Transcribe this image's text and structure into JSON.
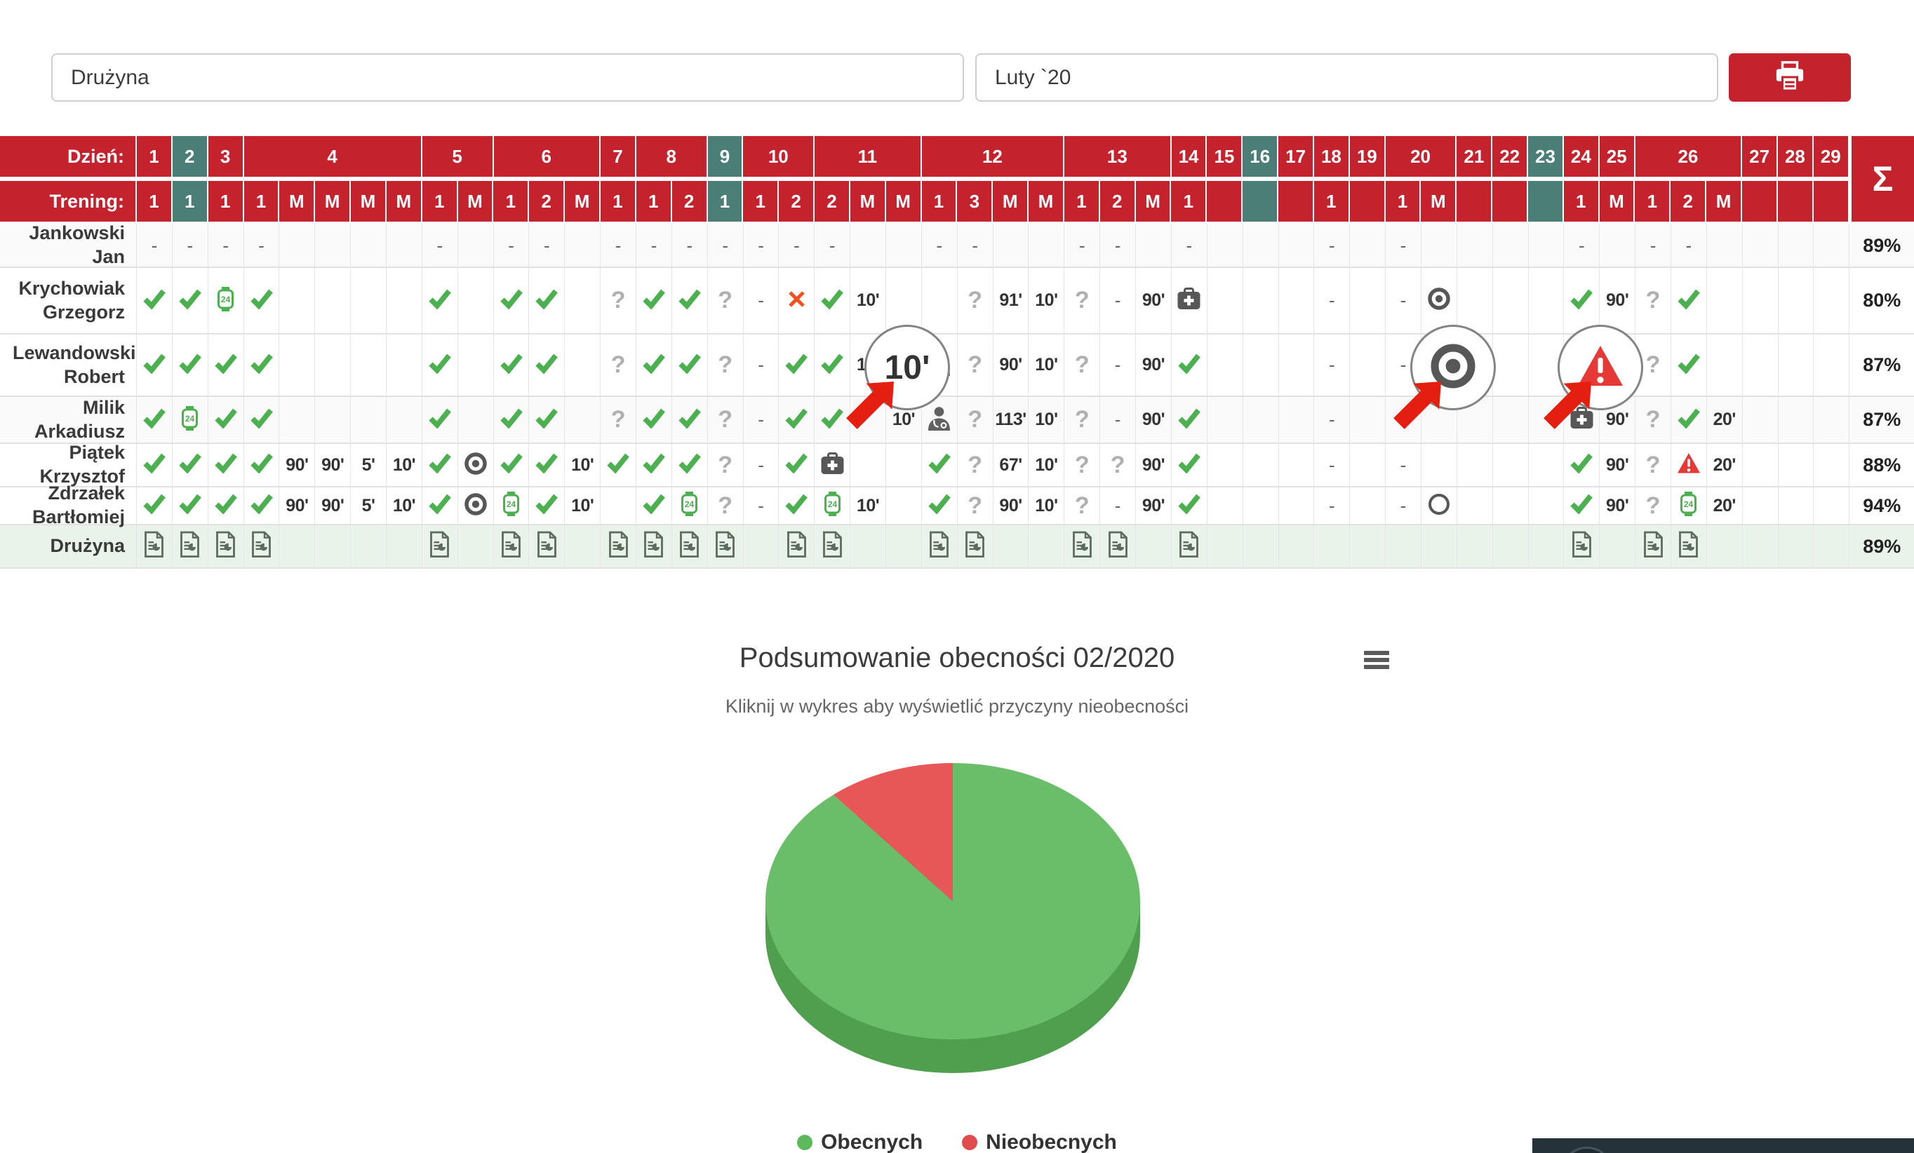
{
  "topbar": {
    "team_value": "Drużyna",
    "month_value": "Luty `20",
    "print_icon": "printer-icon"
  },
  "table": {
    "day_label": "Dzień:",
    "training_label": "Trening:",
    "sum_label": "Σ",
    "day_groups": [
      {
        "day": "1",
        "span": 1,
        "teal": false
      },
      {
        "day": "2",
        "span": 1,
        "teal": true
      },
      {
        "day": "3",
        "span": 1,
        "teal": false
      },
      {
        "day": "4",
        "span": 5,
        "teal": false
      },
      {
        "day": "5",
        "span": 2,
        "teal": false
      },
      {
        "day": "6",
        "span": 3,
        "teal": false
      },
      {
        "day": "7",
        "span": 1,
        "teal": false
      },
      {
        "day": "8",
        "span": 2,
        "teal": false
      },
      {
        "day": "9",
        "span": 1,
        "teal": true
      },
      {
        "day": "10",
        "span": 2,
        "teal": false
      },
      {
        "day": "11",
        "span": 3,
        "teal": false
      },
      {
        "day": "12",
        "span": 4,
        "teal": false
      },
      {
        "day": "13",
        "span": 3,
        "teal": false
      },
      {
        "day": "14",
        "span": 1,
        "teal": false
      },
      {
        "day": "15",
        "span": 1,
        "teal": false
      },
      {
        "day": "16",
        "span": 1,
        "teal": true
      },
      {
        "day": "17",
        "span": 1,
        "teal": false
      },
      {
        "day": "18",
        "span": 1,
        "teal": false
      },
      {
        "day": "19",
        "span": 1,
        "teal": false
      },
      {
        "day": "20",
        "span": 2,
        "teal": false
      },
      {
        "day": "21",
        "span": 1,
        "teal": false
      },
      {
        "day": "22",
        "span": 1,
        "teal": false
      },
      {
        "day": "23",
        "span": 1,
        "teal": true
      },
      {
        "day": "24",
        "span": 1,
        "teal": false
      },
      {
        "day": "25",
        "span": 1,
        "teal": false
      },
      {
        "day": "26",
        "span": 3,
        "teal": false
      },
      {
        "day": "27",
        "span": 1,
        "teal": false
      },
      {
        "day": "28",
        "span": 1,
        "teal": false
      },
      {
        "day": "29",
        "span": 1,
        "teal": false
      }
    ],
    "training_row": [
      "1",
      "1",
      "1",
      "1",
      "M",
      "M",
      "M",
      "M",
      "1",
      "M",
      "1",
      "2",
      "M",
      "1",
      "1",
      "2",
      "1",
      "1",
      "2",
      "2",
      "M",
      "M",
      "1",
      "3",
      "M",
      "M",
      "1",
      "2",
      "M",
      "1",
      "",
      "",
      "",
      "1",
      "",
      "1",
      "M",
      "",
      "",
      "",
      "1",
      "M",
      "1",
      "2",
      "M",
      "",
      "",
      ""
    ],
    "teal_cols": [
      2,
      17,
      32,
      40
    ],
    "icon_legend": {
      "ck": "present-check",
      "w": "watch-24",
      "?": "unknown",
      "x": "absent-x",
      "tg": "target",
      "o": "circle-outline",
      "mk": "medkit",
      "dr": "doctor",
      "wt": "warning-triangle",
      "rp": "team-report",
      "-": "not-applicable"
    },
    "rows": [
      {
        "name": "Jankowski Jan",
        "pct": "89%",
        "tint": true,
        "cells": [
          "-",
          "-",
          "-",
          "-",
          "",
          "",
          "",
          "",
          "-",
          "",
          "-",
          "-",
          "",
          "-",
          "-",
          "-",
          "-",
          "-",
          "-",
          "-",
          "",
          "",
          "-",
          "-",
          "",
          "",
          "-",
          "-",
          "",
          "-",
          "",
          "",
          "",
          "-",
          "",
          "-",
          "",
          "",
          "",
          "",
          "-",
          "",
          "-",
          "-",
          "",
          "",
          "",
          ""
        ]
      },
      {
        "name": "Krychowiak Grzegorz",
        "pct": "80%",
        "tint": false,
        "cells": [
          "ck",
          "ck",
          "w",
          "ck",
          "",
          "",
          "",
          "",
          "ck",
          "",
          "ck",
          "ck",
          "",
          "?",
          "ck",
          "ck",
          "?",
          "-",
          "x",
          "ck",
          "10'",
          "",
          "",
          "?",
          "91'",
          "10'",
          "?",
          "-",
          "90'",
          "mk",
          "",
          "",
          "",
          "-",
          "",
          "-",
          "tg",
          "",
          "",
          "",
          "ck",
          "90'",
          "?",
          "ck",
          "",
          "",
          "",
          ""
        ]
      },
      {
        "name": "Lewandowski Robert",
        "pct": "87%",
        "tint": false,
        "cells": [
          "ck",
          "ck",
          "ck",
          "ck",
          "",
          "",
          "",
          "",
          "ck",
          "",
          "ck",
          "ck",
          "",
          "?",
          "ck",
          "ck",
          "?",
          "-",
          "ck",
          "ck",
          "10'",
          "",
          "dr",
          "?",
          "90'",
          "10'",
          "?",
          "-",
          "90'",
          "ck",
          "",
          "",
          "",
          "-",
          "",
          "-",
          "tg",
          "",
          "",
          "",
          "wt",
          "90'",
          "?",
          "ck",
          "",
          "",
          "",
          ""
        ]
      },
      {
        "name": "Milik Arkadiusz",
        "pct": "87%",
        "tint": true,
        "cells": [
          "ck",
          "w",
          "ck",
          "ck",
          "",
          "",
          "",
          "",
          "ck",
          "",
          "ck",
          "ck",
          "",
          "?",
          "ck",
          "ck",
          "?",
          "-",
          "ck",
          "ck",
          "",
          "10'",
          "dr",
          "?",
          "113'",
          "10'",
          "?",
          "-",
          "90'",
          "ck",
          "",
          "",
          "",
          "-",
          "",
          "",
          "",
          "",
          "",
          "",
          "mk",
          "90'",
          "?",
          "ck",
          "20'",
          "",
          "",
          ""
        ]
      },
      {
        "name": "Piątek Krzysztof",
        "pct": "88%",
        "tint": false,
        "cells": [
          "ck",
          "ck",
          "ck",
          "ck",
          "90'",
          "90'",
          "5'",
          "10'",
          "ck",
          "tg",
          "ck",
          "ck",
          "10'",
          "ck",
          "ck",
          "ck",
          "?",
          "-",
          "ck",
          "mk",
          "",
          "",
          "ck",
          "?",
          "67'",
          "10'",
          "?",
          "?",
          "90'",
          "ck",
          "",
          "",
          "",
          "-",
          "",
          "-",
          "",
          "",
          "",
          "",
          "ck",
          "90'",
          "?",
          "wt",
          "20'",
          "",
          "",
          ""
        ]
      },
      {
        "name": "Zdrzałek Bartłomiej",
        "pct": "94%",
        "tint": false,
        "cells": [
          "ck",
          "ck",
          "ck",
          "ck",
          "90'",
          "90'",
          "5'",
          "10'",
          "ck",
          "tg",
          "w",
          "ck",
          "10'",
          "",
          "ck",
          "w",
          "?",
          "-",
          "ck",
          "w",
          "10'",
          "",
          "ck",
          "?",
          "90'",
          "10'",
          "?",
          "-",
          "90'",
          "ck",
          "",
          "",
          "",
          "-",
          "",
          "-",
          "o",
          "",
          "",
          "",
          "ck",
          "90'",
          "?",
          "w",
          "20'",
          "",
          "",
          ""
        ]
      }
    ],
    "team_row": {
      "name": "Drużyna",
      "pct": "89%",
      "cells": [
        "rp",
        "rp",
        "rp",
        "rp",
        "",
        "",
        "",
        "",
        "rp",
        "",
        "rp",
        "rp",
        "",
        "rp",
        "rp",
        "rp",
        "rp",
        "",
        "rp",
        "rp",
        "",
        "",
        "rp",
        "rp",
        "",
        "",
        "rp",
        "rp",
        "",
        "rp",
        "",
        "",
        "",
        "",
        "",
        "",
        "",
        "",
        "",
        "",
        "rp",
        "",
        "rp",
        "rp",
        "",
        "",
        "",
        ""
      ]
    }
  },
  "overlays": {
    "circles": [
      {
        "type": "minutes",
        "text": "10'"
      },
      {
        "type": "target"
      },
      {
        "type": "warning"
      }
    ]
  },
  "chart": {
    "title": "Podsumowanie obecności 02/2020",
    "subtitle": "Kliknij w wykres aby wyświetlić przyczyny nieobecności",
    "legend": [
      {
        "label": "Obecnych",
        "color": "#5cba5c"
      },
      {
        "label": "Nieobecnych",
        "color": "#e14d4d"
      }
    ]
  },
  "chart_data": {
    "type": "pie",
    "title": "Podsumowanie obecności 02/2020",
    "subtitle": "Kliknij w wykres aby wyświetlić przyczyny nieobecności",
    "labels": [
      "Obecnych",
      "Nieobecnych"
    ],
    "values": [
      89,
      11
    ],
    "colors": [
      "#6abe69",
      "#e85757"
    ],
    "side_color": "#4f9f4f",
    "three_d": true,
    "legend_position": "bottom"
  },
  "colors": {
    "header_red": "#c4232e",
    "weekend_teal": "#4a7e76",
    "team_row_green": "#e9f3e9",
    "check_green": "#4caf50",
    "absent_orange": "#f4511e",
    "warning_red": "#e53935",
    "arrow_red": "#e51f10"
  }
}
